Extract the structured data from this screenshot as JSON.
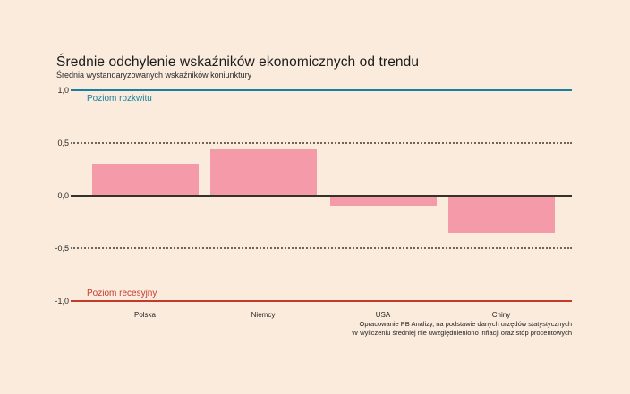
{
  "colors": {
    "background": "#faebdd",
    "bar": "#f59aa9",
    "boom_line": "#16809e",
    "recession_line": "#c43a2b",
    "zero_line": "#35322a",
    "gridline": "#6e6459"
  },
  "chart_data": {
    "type": "bar",
    "title": "Średnie odchylenie wskaźników ekonomicznych od trendu",
    "subtitle": "Średnia wystandaryzowanych wskaźników koniunktury",
    "categories": [
      "Polska",
      "Niemcy",
      "USA",
      "Chiny"
    ],
    "values": [
      0.3,
      0.44,
      -0.1,
      -0.36
    ],
    "ylim": [
      -1.0,
      1.0
    ],
    "ytick_labels": [
      "1,0",
      "0,5",
      "0,0",
      "-0,5",
      "-1,0"
    ],
    "gridline_values": [
      0.5,
      -0.5
    ],
    "zero_line": true,
    "grid": "dotted horizontal at ±0,5",
    "legend_position": "none",
    "xlabel": "",
    "ylabel": "",
    "reference_lines": [
      {
        "value": 1.0,
        "label": "Poziom rozkwitu",
        "color": "#16809e"
      },
      {
        "value": -1.0,
        "label": "Poziom recesyjny",
        "color": "#c43a2b"
      }
    ]
  },
  "footnote": {
    "line1": "Opracowanie PB Analizy, na podstawie danych urzędów statystycznych",
    "line2": "W wyliczeniu średniej nie uwzględnieniono inflacji oraz stóp procentowych"
  }
}
